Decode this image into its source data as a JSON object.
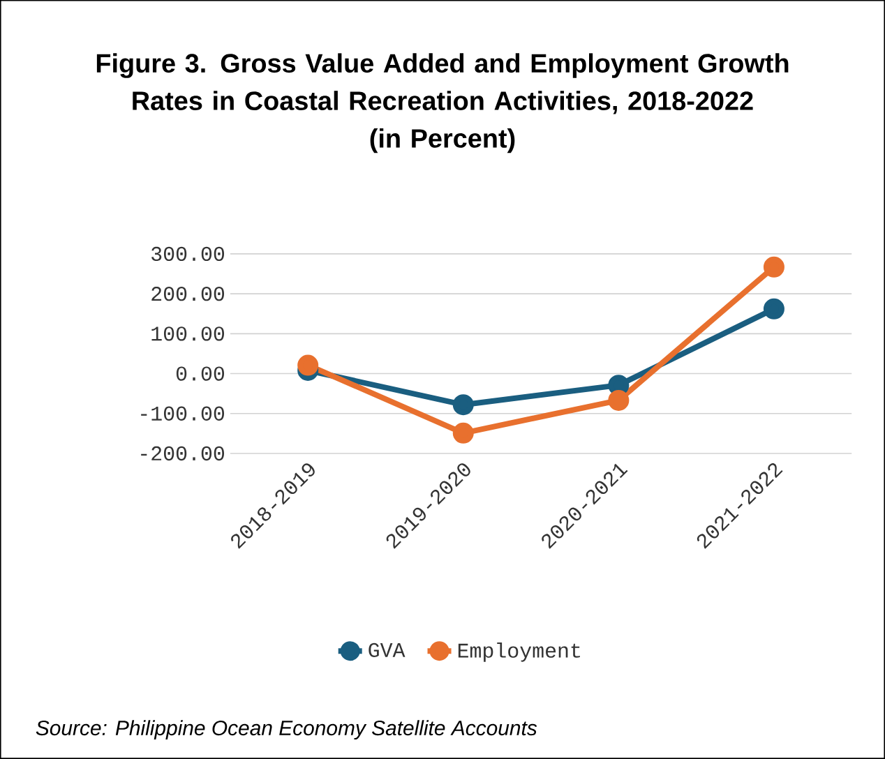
{
  "chart_data": {
    "type": "line",
    "title": "Figure 3. Gross Value Added and Employment Growth Rates in Coastal Recreation Activities, 2018-2022",
    "subtitle": "(in Percent)",
    "categories": [
      "2018-2019",
      "2019-2020",
      "2020-2021",
      "2021-2022"
    ],
    "series": [
      {
        "name": "GVA",
        "color": "#1a5e80",
        "values": [
          8,
          -78,
          -29,
          162
        ]
      },
      {
        "name": "Employment",
        "color": "#e8702e",
        "values": [
          21,
          -149,
          -67,
          267
        ]
      }
    ],
    "ylim": [
      -200,
      300
    ],
    "yticks": [
      {
        "value": -200,
        "label": "-200.00"
      },
      {
        "value": -100,
        "label": "-100.00"
      },
      {
        "value": 0,
        "label": "0.00"
      },
      {
        "value": 100,
        "label": "100.00"
      },
      {
        "value": 200,
        "label": "200.00"
      },
      {
        "value": 300,
        "label": "300.00"
      }
    ],
    "grid": "y",
    "legend": "bottom",
    "marker": "circle",
    "line_style": "solid",
    "annotations": [
      "Source: Philippine Ocean Economy Satellite Accounts"
    ]
  }
}
